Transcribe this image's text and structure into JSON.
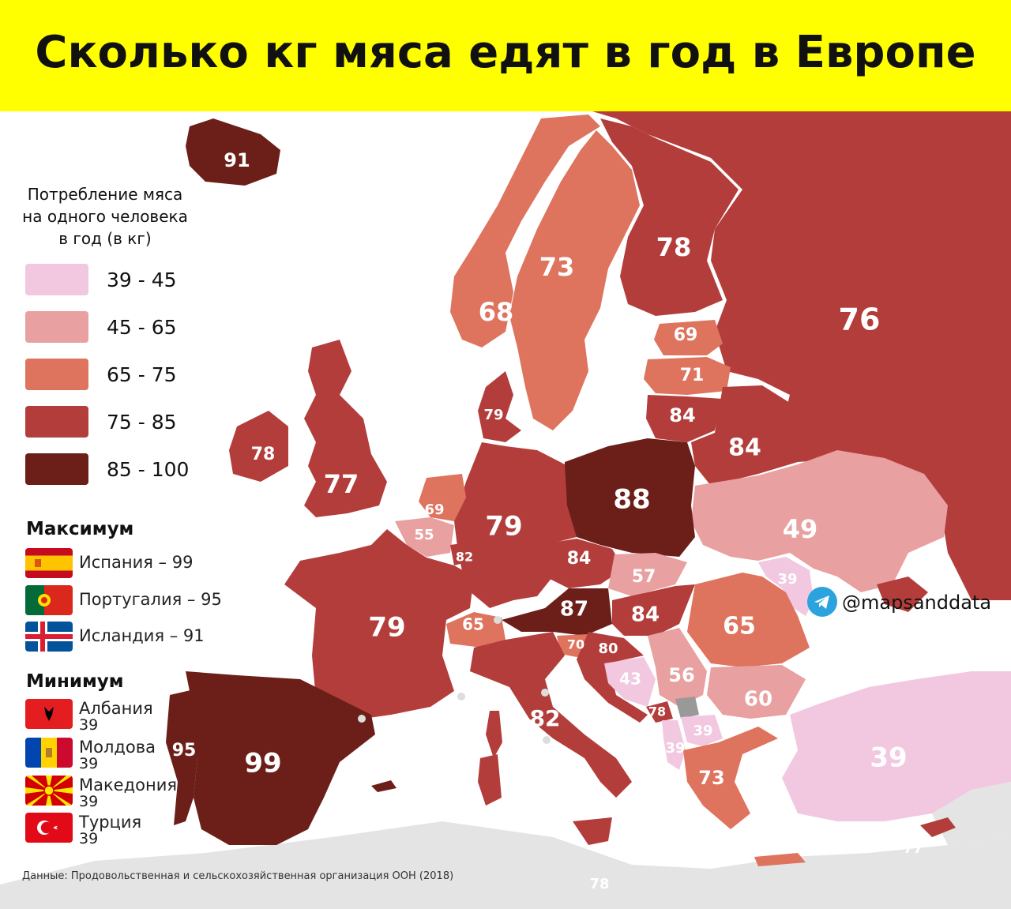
{
  "title": "Сколько кг мяса едят в год в Европе",
  "legend": {
    "title_lines": [
      "Потребление мяса",
      "на одного человека",
      "в год (в кг)"
    ],
    "bins": [
      {
        "label": "39 - 45",
        "color": "#f2c8e0"
      },
      {
        "label": "45 - 65",
        "color": "#e8a0a0"
      },
      {
        "label": "65 - 75",
        "color": "#de735e"
      },
      {
        "label": "75 - 85",
        "color": "#b33d3b"
      },
      {
        "label": "85 - 100",
        "color": "#6b1f18"
      }
    ]
  },
  "maximum": {
    "heading": "Максимум",
    "items": [
      {
        "text": "Испания – 99",
        "flag": "spain-flag"
      },
      {
        "text": "Португалия – 95",
        "flag": "portugal-flag"
      },
      {
        "text": "Исландия – 91",
        "flag": "iceland-flag"
      }
    ]
  },
  "minimum": {
    "heading": "Минимум",
    "items": [
      {
        "name": "Албания",
        "value": "39",
        "flag": "albania-flag"
      },
      {
        "name": "Молдова",
        "value": "39",
        "flag": "moldova-flag"
      },
      {
        "name": "Македония",
        "value": "39",
        "flag": "macedonia-flag"
      },
      {
        "name": "Турция",
        "value": "39",
        "flag": "turkey-flag"
      }
    ]
  },
  "country_values": {
    "iceland": "91",
    "ireland": "78",
    "uk": "77",
    "norway": "68",
    "sweden": "73",
    "finland": "78",
    "russia": "76",
    "estonia": "69",
    "latvia": "71",
    "lithuania": "84",
    "belarus": "84",
    "denmark": "79",
    "netherlands": "69",
    "belgium": "55",
    "luxembourg": "82",
    "germany": "79",
    "poland": "88",
    "ukraine": "49",
    "moldova": "39",
    "czechia": "84",
    "slovakia": "57",
    "austria": "87",
    "hungary": "84",
    "switzerland": "65",
    "france": "79",
    "romania": "65",
    "slovenia": "70",
    "croatia": "80",
    "bosnia": "43",
    "serbia": "56",
    "bulgaria": "60",
    "montenegro": "78",
    "macedonia": "39",
    "albania": "39",
    "greece": "73",
    "turkey": "39",
    "italy": "82",
    "spain": "99",
    "portugal": "95",
    "cyprus": "77",
    "malta": "78"
  },
  "source": "Данные: Продовольственная и сельскохозяйственная организация ООН (2018)",
  "credit": "@mapsanddata"
}
